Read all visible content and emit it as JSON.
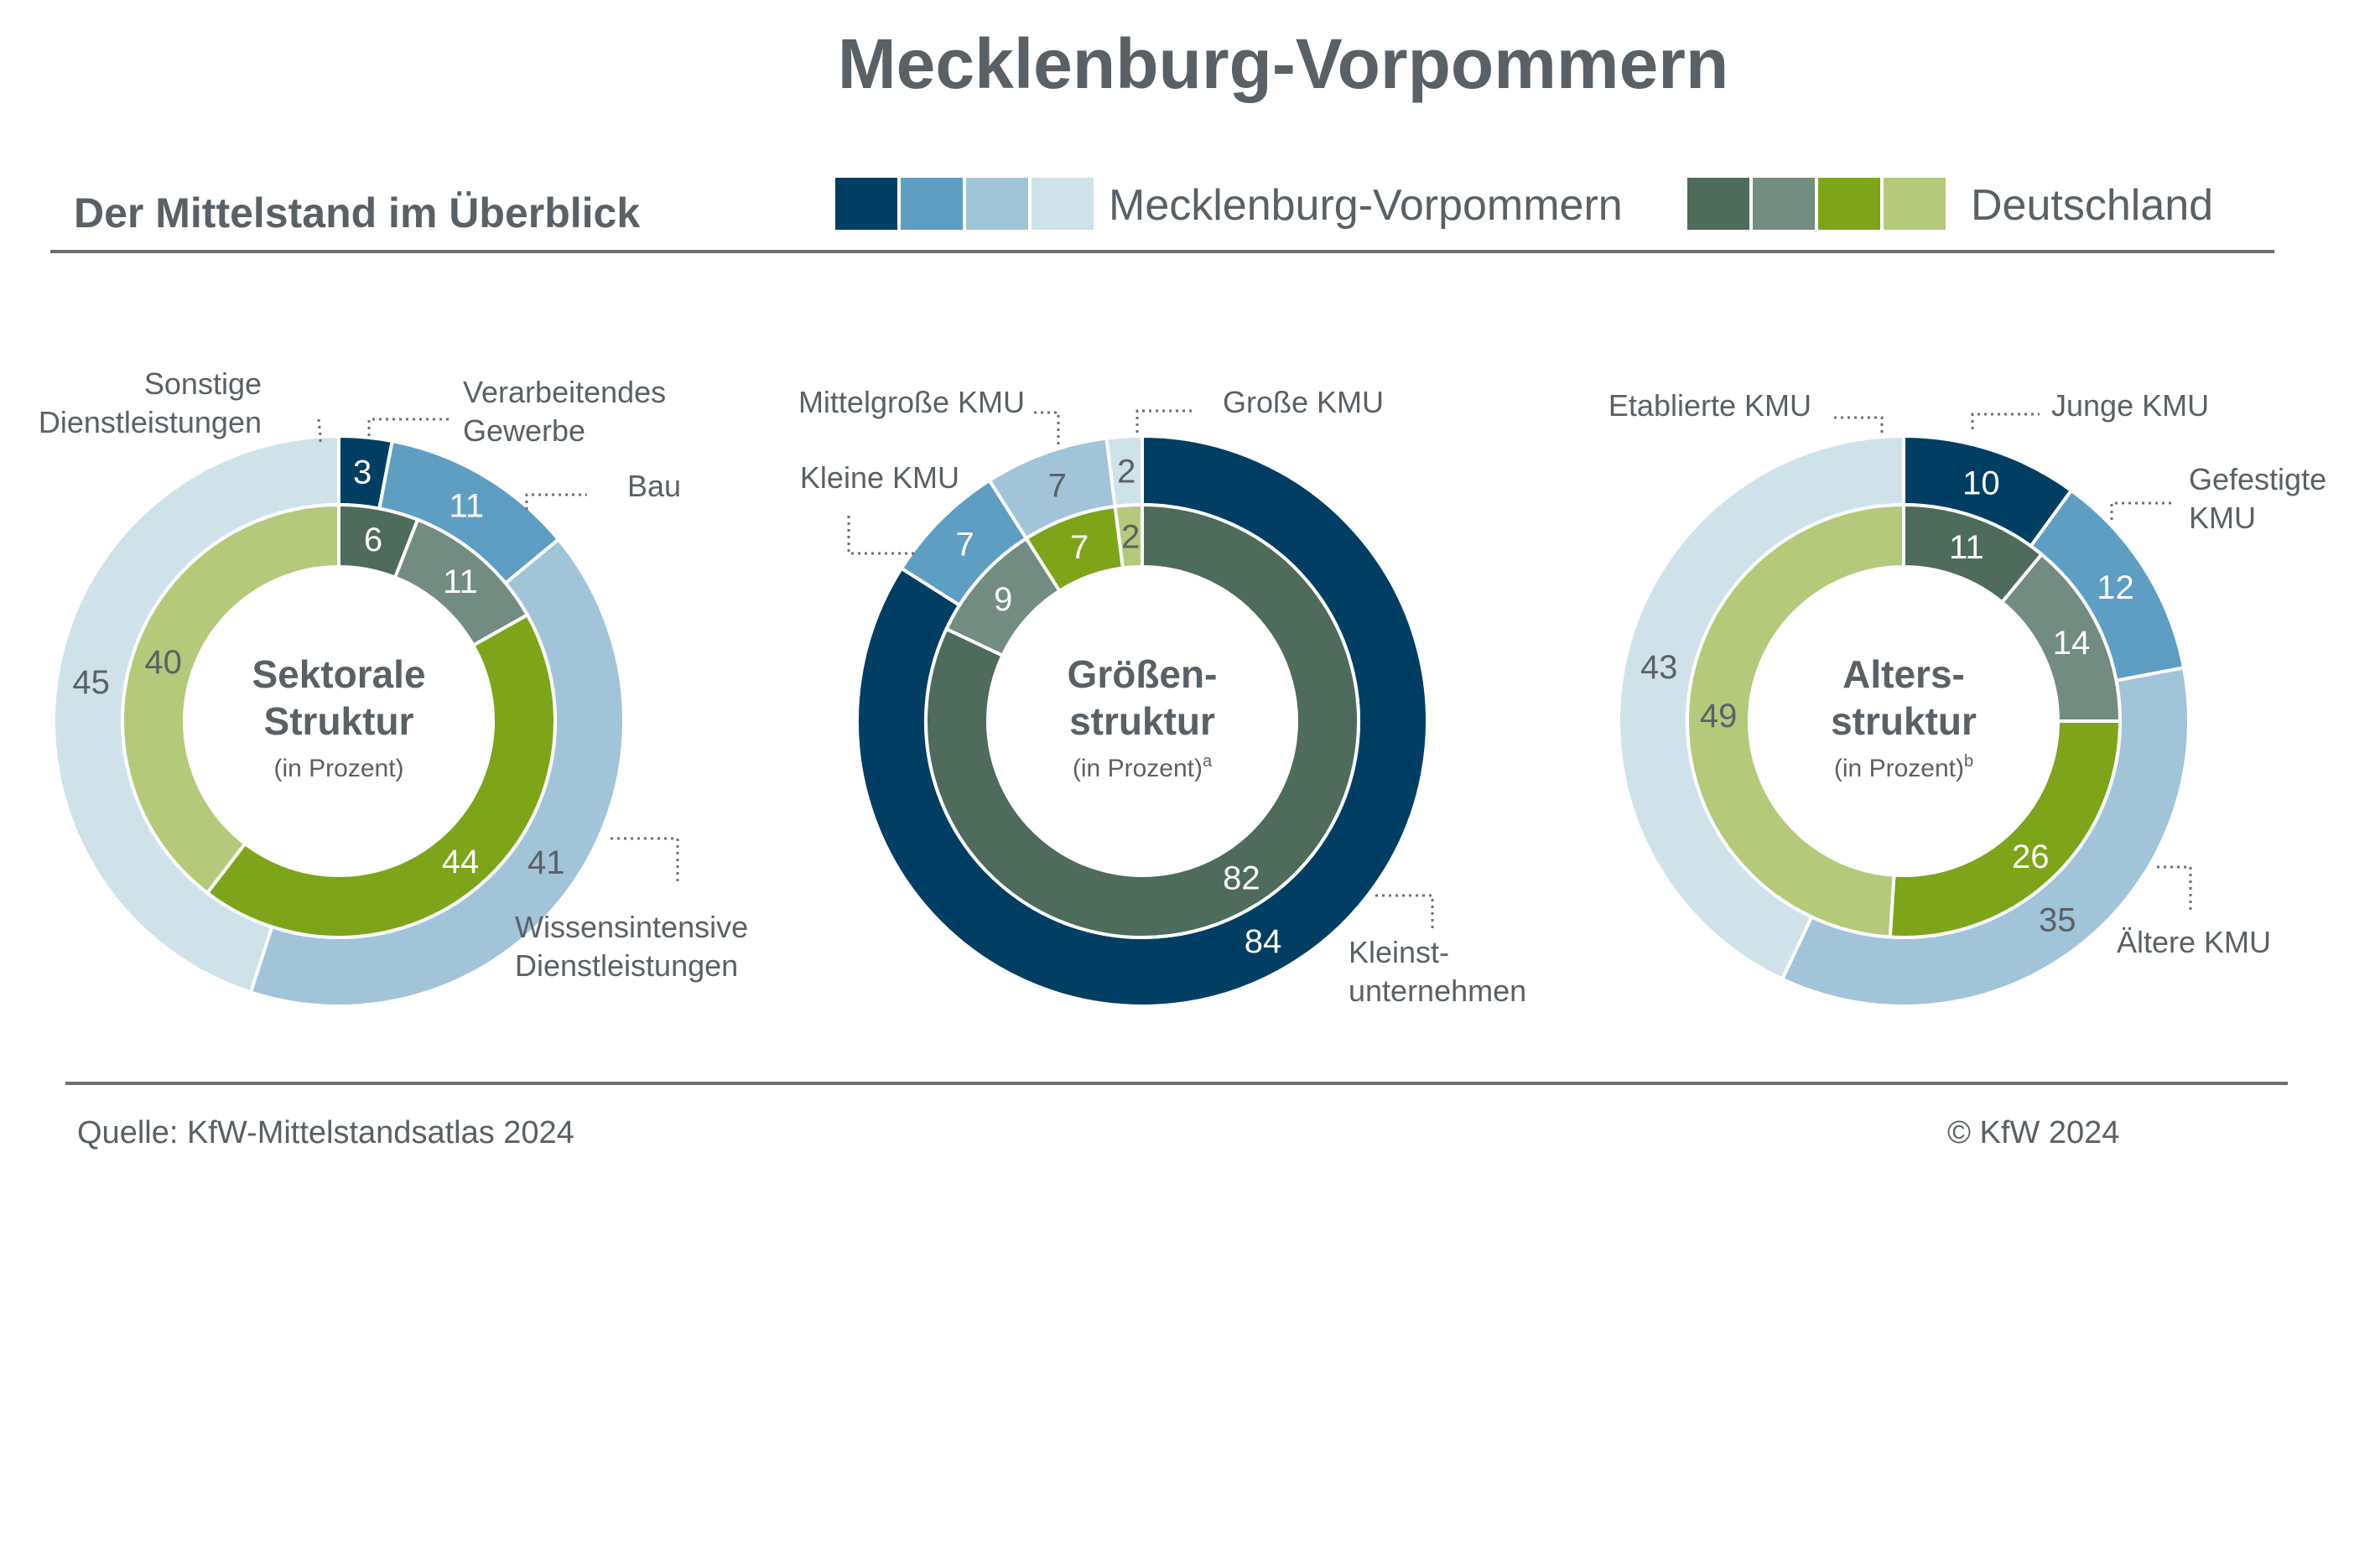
{
  "header": {
    "title": "Mecklenburg-Vorpommern",
    "subtitle": "Der Mittelstand im Überblick"
  },
  "legend": {
    "items": [
      {
        "label": "Mecklenburg-Vorpommern",
        "colors": [
          "#003f63",
          "#5e9ec3",
          "#a2c4d8",
          "#cfe2ea"
        ]
      },
      {
        "label": "Deutschland",
        "colors": [
          "#4e6b5c",
          "#738c81",
          "#7ea41a",
          "#b4c97a"
        ]
      }
    ]
  },
  "chart_data": [
    {
      "type": "pie",
      "center_title": [
        "Sektorale",
        "Struktur"
      ],
      "center_subtitle": "(in Prozent)",
      "center_superscript": "",
      "categories": [
        "Verarbeitendes Gewerbe",
        "Bau",
        "Wissensintensive Dienstleistungen",
        "Sonstige Dienstleistungen"
      ],
      "series": [
        {
          "name": "Mecklenburg-Vorpommern",
          "ring": "outer",
          "values": [
            3,
            11,
            41,
            45
          ]
        },
        {
          "name": "Deutschland",
          "ring": "inner",
          "values": [
            6,
            11,
            44,
            40
          ]
        }
      ],
      "category_labels": [
        {
          "text": [
            "Sonstige",
            "Dienstleistungen"
          ]
        },
        {
          "text": [
            "Verarbeitendes",
            "Gewerbe"
          ]
        },
        {
          "text": [
            "Bau"
          ]
        },
        {
          "text": [
            "Wissensintensive",
            "Dienstleistungen"
          ]
        }
      ]
    },
    {
      "type": "pie",
      "center_title": [
        "Größen-",
        "struktur"
      ],
      "center_subtitle": "(in Prozent)",
      "center_superscript": "a",
      "categories": [
        "Kleinstunternehmen",
        "Kleine KMU",
        "Mittelgroße KMU",
        "Große KMU"
      ],
      "series": [
        {
          "name": "Mecklenburg-Vorpommern",
          "ring": "outer",
          "values": [
            84,
            7,
            7,
            2
          ]
        },
        {
          "name": "Deutschland",
          "ring": "inner",
          "values": [
            82,
            9,
            7,
            2
          ]
        }
      ],
      "category_labels": [
        {
          "text": [
            "Mittelgroße KMU"
          ]
        },
        {
          "text": [
            "Große KMU"
          ]
        },
        {
          "text": [
            "Kleine KMU"
          ]
        },
        {
          "text": [
            "Kleinst-",
            "unternehmen"
          ]
        }
      ]
    },
    {
      "type": "pie",
      "center_title": [
        "Alters-",
        "struktur"
      ],
      "center_subtitle": "(in Prozent)",
      "center_superscript": "b",
      "categories": [
        "Junge KMU",
        "Gefestigte KMU",
        "Ältere KMU",
        "Etablierte KMU"
      ],
      "series": [
        {
          "name": "Mecklenburg-Vorpommern",
          "ring": "outer",
          "values": [
            10,
            12,
            35,
            43
          ]
        },
        {
          "name": "Deutschland",
          "ring": "inner",
          "values": [
            11,
            14,
            26,
            49
          ]
        }
      ],
      "category_labels": [
        {
          "text": [
            "Etablierte KMU"
          ]
        },
        {
          "text": [
            "Junge KMU"
          ]
        },
        {
          "text": [
            "Gefestigte",
            "KMU"
          ]
        },
        {
          "text": [
            "Ältere KMU"
          ]
        }
      ]
    }
  ],
  "footer": {
    "source": "Quelle: KfW-Mittelstandsatlas 2024",
    "copyright": "© KfW 2024"
  }
}
